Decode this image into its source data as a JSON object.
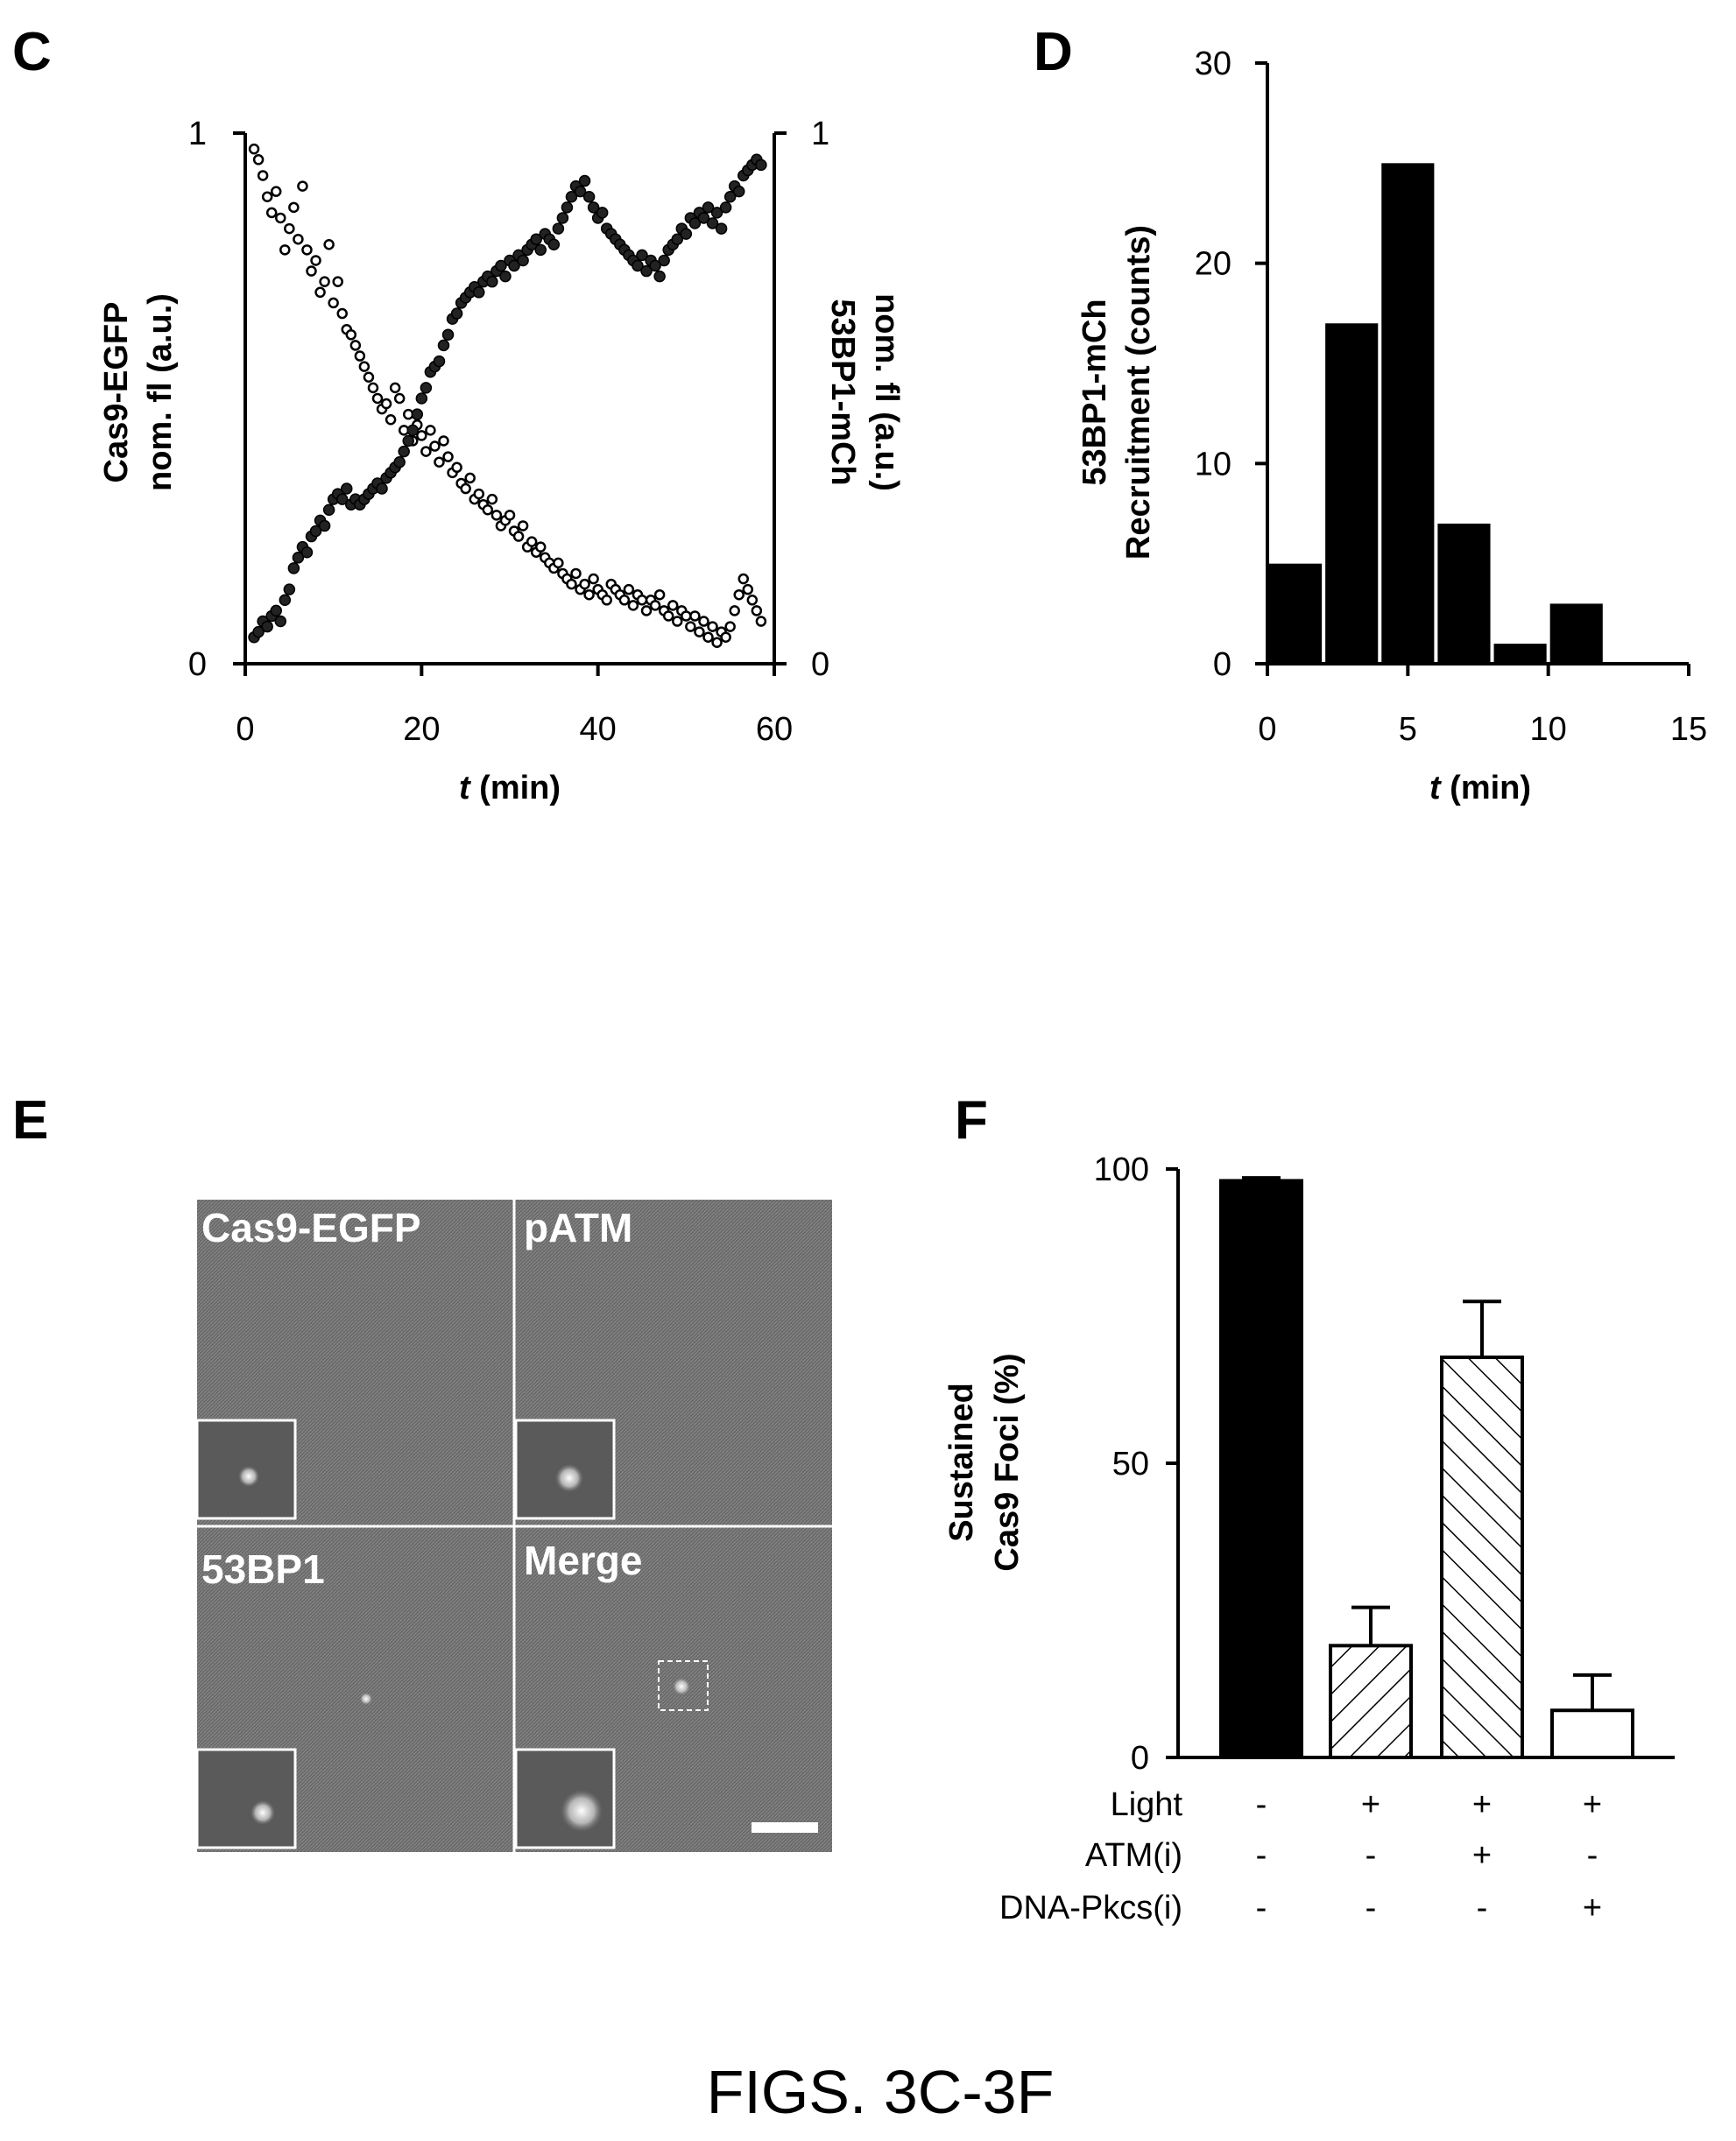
{
  "caption": "FIGS. 3C-3F",
  "chart_data": [
    {
      "panel": "C",
      "type": "scatter",
      "xlabel_italic": "t",
      "xlabel_rest": " (min)",
      "ylabel_left": [
        "Cas9-EGFP",
        "nom. fl (a.u.)"
      ],
      "ylabel_right": [
        "53BP1-mCh",
        "nom. fl (a.u.)"
      ],
      "xlim": [
        0,
        60
      ],
      "ylim": [
        0,
        1
      ],
      "xticks": [
        "0",
        "20",
        "40",
        "60"
      ],
      "yticks_left": [
        "0",
        "1"
      ],
      "yticks_right": [
        "0",
        "1"
      ],
      "series": [
        {
          "marker": "open-circle",
          "points": [
            [
              1,
              0.97
            ],
            [
              1.5,
              0.95
            ],
            [
              2,
              0.92
            ],
            [
              2.5,
              0.88
            ],
            [
              3,
              0.85
            ],
            [
              3.5,
              0.89
            ],
            [
              4,
              0.84
            ],
            [
              4.5,
              0.78
            ],
            [
              5,
              0.82
            ],
            [
              5.5,
              0.86
            ],
            [
              6,
              0.8
            ],
            [
              6.5,
              0.9
            ],
            [
              7,
              0.78
            ],
            [
              7.5,
              0.74
            ],
            [
              8,
              0.76
            ],
            [
              8.5,
              0.7
            ],
            [
              9,
              0.72
            ],
            [
              9.5,
              0.79
            ],
            [
              10,
              0.68
            ],
            [
              10.5,
              0.72
            ],
            [
              11,
              0.66
            ],
            [
              11.5,
              0.63
            ],
            [
              12,
              0.62
            ],
            [
              12.5,
              0.6
            ],
            [
              13,
              0.58
            ],
            [
              13.5,
              0.56
            ],
            [
              14,
              0.54
            ],
            [
              14.5,
              0.52
            ],
            [
              15,
              0.5
            ],
            [
              15.5,
              0.48
            ],
            [
              16,
              0.49
            ],
            [
              16.5,
              0.46
            ],
            [
              17,
              0.52
            ],
            [
              17.5,
              0.5
            ],
            [
              18,
              0.44
            ],
            [
              18.5,
              0.47
            ],
            [
              19,
              0.42
            ],
            [
              19.5,
              0.45
            ],
            [
              20,
              0.43
            ],
            [
              20.5,
              0.4
            ],
            [
              21,
              0.44
            ],
            [
              21.5,
              0.41
            ],
            [
              22,
              0.38
            ],
            [
              22.5,
              0.42
            ],
            [
              23,
              0.39
            ],
            [
              23.5,
              0.36
            ],
            [
              24,
              0.37
            ],
            [
              24.5,
              0.34
            ],
            [
              25,
              0.33
            ],
            [
              25.5,
              0.35
            ],
            [
              26,
              0.31
            ],
            [
              26.5,
              0.32
            ],
            [
              27,
              0.3
            ],
            [
              27.5,
              0.29
            ],
            [
              28,
              0.31
            ],
            [
              28.5,
              0.28
            ],
            [
              29,
              0.26
            ],
            [
              29.5,
              0.27
            ],
            [
              30,
              0.28
            ],
            [
              30.5,
              0.25
            ],
            [
              31,
              0.24
            ],
            [
              31.5,
              0.26
            ],
            [
              32,
              0.22
            ],
            [
              32.5,
              0.23
            ],
            [
              33,
              0.21
            ],
            [
              33.5,
              0.22
            ],
            [
              34,
              0.2
            ],
            [
              34.5,
              0.19
            ],
            [
              35,
              0.18
            ],
            [
              35.5,
              0.19
            ],
            [
              36,
              0.17
            ],
            [
              36.5,
              0.16
            ],
            [
              37,
              0.15
            ],
            [
              37.5,
              0.17
            ],
            [
              38,
              0.14
            ],
            [
              38.5,
              0.15
            ],
            [
              39,
              0.13
            ],
            [
              39.5,
              0.16
            ],
            [
              40,
              0.14
            ],
            [
              40.5,
              0.13
            ],
            [
              41,
              0.12
            ],
            [
              41.5,
              0.15
            ],
            [
              42,
              0.14
            ],
            [
              42.5,
              0.13
            ],
            [
              43,
              0.12
            ],
            [
              43.5,
              0.14
            ],
            [
              44,
              0.11
            ],
            [
              44.5,
              0.13
            ],
            [
              45,
              0.12
            ],
            [
              45.5,
              0.1
            ],
            [
              46,
              0.12
            ],
            [
              46.5,
              0.11
            ],
            [
              47,
              0.13
            ],
            [
              47.5,
              0.1
            ],
            [
              48,
              0.09
            ],
            [
              48.5,
              0.11
            ],
            [
              49,
              0.08
            ],
            [
              49.5,
              0.1
            ],
            [
              50,
              0.09
            ],
            [
              50.5,
              0.07
            ],
            [
              51,
              0.09
            ],
            [
              51.5,
              0.06
            ],
            [
              52,
              0.08
            ],
            [
              52.5,
              0.05
            ],
            [
              53,
              0.07
            ],
            [
              53.5,
              0.04
            ],
            [
              54,
              0.06
            ],
            [
              54.5,
              0.05
            ],
            [
              55,
              0.07
            ],
            [
              55.5,
              0.1
            ],
            [
              56,
              0.13
            ],
            [
              56.5,
              0.16
            ],
            [
              57,
              0.14
            ],
            [
              57.5,
              0.12
            ],
            [
              58,
              0.1
            ],
            [
              58.5,
              0.08
            ]
          ]
        },
        {
          "marker": "filled-circle",
          "points": [
            [
              1,
              0.05
            ],
            [
              1.5,
              0.06
            ],
            [
              2,
              0.08
            ],
            [
              2.5,
              0.07
            ],
            [
              3,
              0.09
            ],
            [
              3.5,
              0.1
            ],
            [
              4,
              0.08
            ],
            [
              4.5,
              0.12
            ],
            [
              5,
              0.14
            ],
            [
              5.5,
              0.18
            ],
            [
              6,
              0.2
            ],
            [
              6.5,
              0.22
            ],
            [
              7,
              0.21
            ],
            [
              7.5,
              0.24
            ],
            [
              8,
              0.25
            ],
            [
              8.5,
              0.27
            ],
            [
              9,
              0.26
            ],
            [
              9.5,
              0.29
            ],
            [
              10,
              0.31
            ],
            [
              10.5,
              0.32
            ],
            [
              11,
              0.31
            ],
            [
              11.5,
              0.33
            ],
            [
              12,
              0.3
            ],
            [
              12.5,
              0.31
            ],
            [
              13,
              0.3
            ],
            [
              13.5,
              0.31
            ],
            [
              14,
              0.32
            ],
            [
              14.5,
              0.33
            ],
            [
              15,
              0.34
            ],
            [
              15.5,
              0.33
            ],
            [
              16,
              0.35
            ],
            [
              16.5,
              0.36
            ],
            [
              17,
              0.37
            ],
            [
              17.5,
              0.38
            ],
            [
              18,
              0.4
            ],
            [
              18.5,
              0.42
            ],
            [
              19,
              0.44
            ],
            [
              19.5,
              0.47
            ],
            [
              20,
              0.5
            ],
            [
              20.5,
              0.52
            ],
            [
              21,
              0.55
            ],
            [
              21.5,
              0.56
            ],
            [
              22,
              0.57
            ],
            [
              22.5,
              0.6
            ],
            [
              23,
              0.62
            ],
            [
              23.5,
              0.65
            ],
            [
              24,
              0.66
            ],
            [
              24.5,
              0.68
            ],
            [
              25,
              0.69
            ],
            [
              25.5,
              0.7
            ],
            [
              26,
              0.71
            ],
            [
              26.5,
              0.7
            ],
            [
              27,
              0.72
            ],
            [
              27.5,
              0.73
            ],
            [
              28,
              0.72
            ],
            [
              28.5,
              0.74
            ],
            [
              29,
              0.75
            ],
            [
              29.5,
              0.73
            ],
            [
              30,
              0.76
            ],
            [
              30.5,
              0.75
            ],
            [
              31,
              0.77
            ],
            [
              31.5,
              0.76
            ],
            [
              32,
              0.78
            ],
            [
              32.5,
              0.79
            ],
            [
              33,
              0.8
            ],
            [
              33.5,
              0.78
            ],
            [
              34,
              0.81
            ],
            [
              34.5,
              0.8
            ],
            [
              35,
              0.79
            ],
            [
              35.5,
              0.82
            ],
            [
              36,
              0.84
            ],
            [
              36.5,
              0.86
            ],
            [
              37,
              0.88
            ],
            [
              37.5,
              0.9
            ],
            [
              38,
              0.89
            ],
            [
              38.5,
              0.91
            ],
            [
              39,
              0.88
            ],
            [
              39.5,
              0.86
            ],
            [
              40,
              0.84
            ],
            [
              40.5,
              0.85
            ],
            [
              41,
              0.82
            ],
            [
              41.5,
              0.81
            ],
            [
              42,
              0.8
            ],
            [
              42.5,
              0.79
            ],
            [
              43,
              0.78
            ],
            [
              43.5,
              0.77
            ],
            [
              44,
              0.76
            ],
            [
              44.5,
              0.75
            ],
            [
              45,
              0.77
            ],
            [
              45.5,
              0.74
            ],
            [
              46,
              0.76
            ],
            [
              46.5,
              0.75
            ],
            [
              47,
              0.73
            ],
            [
              47.5,
              0.76
            ],
            [
              48,
              0.78
            ],
            [
              48.5,
              0.79
            ],
            [
              49,
              0.8
            ],
            [
              49.5,
              0.82
            ],
            [
              50,
              0.81
            ],
            [
              50.5,
              0.84
            ],
            [
              51,
              0.83
            ],
            [
              51.5,
              0.85
            ],
            [
              52,
              0.84
            ],
            [
              52.5,
              0.86
            ],
            [
              53,
              0.83
            ],
            [
              53.5,
              0.85
            ],
            [
              54,
              0.82
            ],
            [
              54.5,
              0.86
            ],
            [
              55,
              0.88
            ],
            [
              55.5,
              0.9
            ],
            [
              56,
              0.89
            ],
            [
              56.5,
              0.92
            ],
            [
              57,
              0.93
            ],
            [
              57.5,
              0.94
            ],
            [
              58,
              0.95
            ],
            [
              58.5,
              0.94
            ]
          ]
        }
      ]
    },
    {
      "panel": "D",
      "type": "bar",
      "xlabel_italic": "t",
      "xlabel_rest": " (min)",
      "ylabel": [
        "53BP1-mCh",
        "Recruitment (counts)"
      ],
      "xlim": [
        0,
        15
      ],
      "ylim": [
        0,
        30
      ],
      "xticks": [
        "0",
        "5",
        "10",
        "15"
      ],
      "yticks": [
        "0",
        "10",
        "20",
        "30"
      ],
      "bin_width": 2,
      "bins": [
        [
          0,
          5
        ],
        [
          2,
          17
        ],
        [
          4,
          25
        ],
        [
          6,
          7
        ],
        [
          8,
          1
        ],
        [
          10,
          3
        ]
      ]
    },
    {
      "panel": "F",
      "type": "bar",
      "ylabel": [
        "Sustained",
        "Cas9 Foci (%)"
      ],
      "ylim": [
        0,
        100
      ],
      "yticks": [
        "0",
        "50",
        "100"
      ],
      "bars": [
        {
          "value": 98,
          "error": 0.5,
          "fill": "solid-black"
        },
        {
          "value": 19,
          "error": 6.5,
          "fill": "hatch-sparse"
        },
        {
          "value": 68,
          "error": 9.5,
          "fill": "hatch-dense"
        },
        {
          "value": 8,
          "error": 6,
          "fill": "white"
        }
      ],
      "conditions": [
        {
          "label": "Light",
          "values": [
            "-",
            "+",
            "+",
            "+"
          ]
        },
        {
          "label": "ATM(i)",
          "values": [
            "-",
            "-",
            "+",
            "-"
          ]
        },
        {
          "label": "DNA-Pkcs(i)",
          "values": [
            "-",
            "-",
            "-",
            "+"
          ]
        }
      ]
    }
  ],
  "panelE": {
    "letter": "E",
    "quadrants": [
      "Cas9-EGFP",
      "pATM",
      "53BP1",
      "Merge"
    ]
  }
}
